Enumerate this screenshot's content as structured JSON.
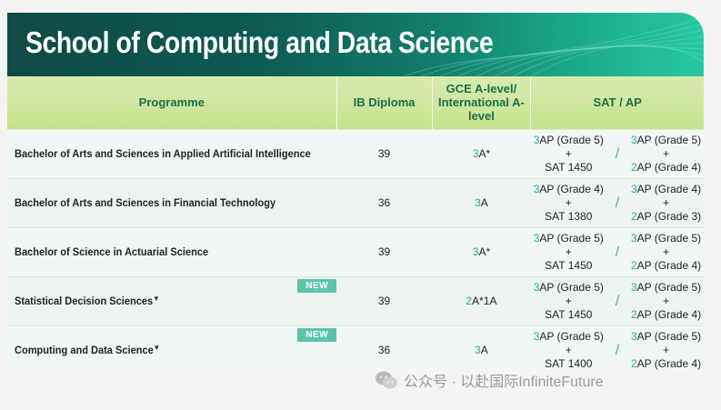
{
  "banner": {
    "title": "School of Computing and Data Science"
  },
  "table": {
    "headers": {
      "programme": "Programme",
      "ib": "IB Diploma",
      "gce": "GCE A-level/ International A-level",
      "sat": "SAT / AP"
    },
    "new_label": "NEW",
    "rows": [
      {
        "name": "Bachelor of Arts and Sciences in Applied Artificial Intelligence",
        "marker": "",
        "ib": "39",
        "gce_num": "3",
        "gce_grade": "A*",
        "sat_left_num": "3",
        "sat_left_text": "AP (Grade 5) +",
        "sat_left_score": "SAT 1450",
        "sat_right_num1": "3",
        "sat_right_text1": "AP (Grade 5) +",
        "sat_right_num2": "2",
        "sat_right_text2": "AP (Grade 4)"
      },
      {
        "name": "Bachelor of Arts and Sciences in Financial Technology",
        "marker": "",
        "ib": "36",
        "gce_num": "3",
        "gce_grade": "A",
        "sat_left_num": "3",
        "sat_left_text": "AP (Grade 4) +",
        "sat_left_score": "SAT 1380",
        "sat_right_num1": "3",
        "sat_right_text1": "AP (Grade 4) +",
        "sat_right_num2": "2",
        "sat_right_text2": "AP (Grade 3)"
      },
      {
        "name": "Bachelor of Science in Actuarial Science",
        "marker": "",
        "ib": "39",
        "gce_num": "3",
        "gce_grade": "A*",
        "sat_left_num": "3",
        "sat_left_text": "AP (Grade 5) +",
        "sat_left_score": "SAT 1450",
        "sat_right_num1": "3",
        "sat_right_text1": "AP (Grade 5) +",
        "sat_right_num2": "2",
        "sat_right_text2": "AP (Grade 4)"
      },
      {
        "name": "Statistical Decision Sciences",
        "marker": "▼",
        "ib": "39",
        "gce_num": "2",
        "gce_grade": "A*1A",
        "sat_left_num": "3",
        "sat_left_text": "AP (Grade 5) +",
        "sat_left_score": "SAT 1450",
        "sat_right_num1": "3",
        "sat_right_text1": "AP (Grade 5) +",
        "sat_right_num2": "2",
        "sat_right_text2": "AP (Grade 4)"
      },
      {
        "name": "Computing and Data Science",
        "marker": "▼",
        "ib": "36",
        "gce_num": "3",
        "gce_grade": "A",
        "sat_left_num": "3",
        "sat_left_text": "AP (Grade 5) +",
        "sat_left_score": "SAT 1400",
        "sat_right_num1": "3",
        "sat_right_text1": "AP (Grade 5) +",
        "sat_right_num2": "2",
        "sat_right_text2": "AP (Grade 4)"
      }
    ],
    "slash": "/"
  },
  "watermark": {
    "text": "公众号 · 以赴国际InfiniteFuture",
    "icon": "wechat-icon"
  },
  "colors": {
    "banner_dark": "#0f4a44",
    "header_green": "#c7e28d",
    "accent_teal": "#2aa7a0",
    "text_green": "#1a6e4a",
    "new_tag": "#5cc4ad"
  }
}
